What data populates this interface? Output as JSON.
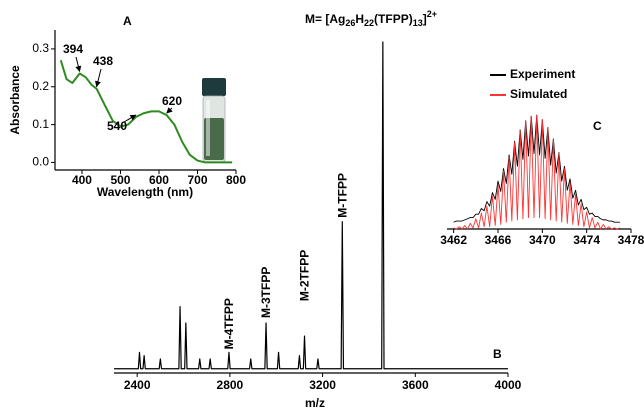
{
  "chart_data": [
    {
      "type": "line",
      "title_parts": [
        "M= [Ag",
        "26",
        "H",
        "22",
        "(TFPP)",
        "13",
        "]",
        "2+"
      ],
      "panel": "B",
      "xlabel": "m/z",
      "x": [
        2300,
        2405,
        2410,
        2415,
        2425,
        2430,
        2435,
        2495,
        2500,
        2505,
        2580,
        2585,
        2590,
        2605,
        2610,
        2615,
        2665,
        2670,
        2675,
        2710,
        2715,
        2720,
        2791,
        2796,
        2801,
        2885,
        2890,
        2895,
        2951,
        2956,
        2961,
        3005,
        3010,
        3015,
        3095,
        3100,
        3105,
        3117,
        3122,
        3127,
        3175,
        3180,
        3185,
        3280,
        3285,
        3290,
        3455,
        3460,
        3465,
        4000
      ],
      "values": [
        0,
        0,
        5,
        0,
        0,
        4,
        0,
        0,
        3,
        0,
        0,
        19,
        0,
        0,
        14,
        0,
        0,
        3,
        0,
        0,
        3,
        0,
        0,
        5,
        0,
        0,
        3,
        0,
        0,
        14,
        0,
        0,
        5,
        0,
        0,
        4,
        0,
        0,
        10,
        0,
        0,
        3,
        0,
        0,
        45,
        0,
        0,
        100,
        0,
        0
      ],
      "color": "#000000",
      "annotations": [
        "M-TFPP",
        "M-2TFPP",
        "M-3TFPP",
        "M-4TFPP"
      ],
      "xlim": [
        2300,
        4000
      ],
      "xticks": [
        2400,
        2800,
        3200,
        3600,
        4000
      ],
      "ylim": [
        -1,
        100
      ]
    },
    {
      "type": "line",
      "panel": "A",
      "xlabel": "Wavelength (nm)",
      "ylabel": "Absorbance",
      "x": [
        345,
        360,
        375,
        394,
        410,
        425,
        438,
        460,
        480,
        500,
        520,
        540,
        560,
        580,
        600,
        620,
        640,
        660,
        680,
        700,
        720,
        760,
        790
      ],
      "values": [
        0.27,
        0.22,
        0.21,
        0.235,
        0.225,
        0.205,
        0.195,
        0.15,
        0.11,
        0.095,
        0.1,
        0.12,
        0.13,
        0.135,
        0.135,
        0.125,
        0.1,
        0.055,
        0.02,
        0.005,
        0,
        0,
        0
      ],
      "color": "#2e8b1f",
      "annotations": [
        394,
        438,
        540,
        620
      ],
      "xlim": [
        330,
        800
      ],
      "xticks": [
        400,
        500,
        600,
        700,
        800
      ],
      "ylim": [
        -0.02,
        0.35
      ],
      "yticks": [
        {
          "value": 0,
          "label": "0.0"
        },
        0.1,
        0.2,
        0.3
      ]
    },
    {
      "type": "line",
      "panel": "C",
      "x": [
        3462,
        3462.25,
        3462.5,
        3462.75,
        3463,
        3463.25,
        3463.5,
        3463.75,
        3464,
        3464.25,
        3464.5,
        3464.75,
        3465,
        3465.25,
        3465.5,
        3465.75,
        3466,
        3466.25,
        3466.5,
        3466.75,
        3467,
        3467.25,
        3467.5,
        3467.75,
        3468,
        3468.25,
        3468.5,
        3468.75,
        3469,
        3469.25,
        3469.5,
        3469.75,
        3470,
        3470.25,
        3470.5,
        3470.75,
        3471,
        3471.25,
        3471.5,
        3471.75,
        3472,
        3472.25,
        3472.5,
        3472.75,
        3473,
        3473.25,
        3473.5,
        3473.75,
        3474,
        3474.25,
        3474.5,
        3474.75,
        3475,
        3475.25,
        3475.5,
        3475.75,
        3476,
        3476.25,
        3476.5,
        3476.75,
        3477
      ],
      "series": [
        {
          "name": "Experiment",
          "color": "#000000",
          "values": [
            6,
            7,
            7,
            7,
            8,
            9,
            10,
            10,
            13,
            13,
            18,
            16,
            24,
            20,
            32,
            26,
            42,
            33,
            53,
            40,
            65,
            48,
            77,
            55,
            87,
            61,
            95,
            64,
            99,
            66,
            100,
            65,
            96,
            62,
            89,
            56,
            79,
            49,
            67,
            42,
            55,
            34,
            44,
            27,
            34,
            21,
            26,
            17,
            19,
            13,
            14,
            11,
            11,
            9,
            8,
            8,
            7,
            7,
            6,
            6,
            6
          ]
        },
        {
          "name": "Simulated",
          "color": "#ff3333",
          "values": [
            1,
            0,
            2,
            0,
            3,
            0,
            5,
            1,
            9,
            1,
            14,
            2,
            20,
            2,
            29,
            3,
            39,
            4,
            51,
            6,
            63,
            7,
            76,
            8,
            86,
            9,
            95,
            10,
            99,
            10,
            100,
            10,
            96,
            9,
            88,
            8,
            78,
            7,
            66,
            6,
            53,
            5,
            41,
            4,
            31,
            3,
            22,
            2,
            15,
            1,
            10,
            1,
            6,
            0,
            4,
            0,
            2,
            0,
            1,
            0,
            1
          ]
        }
      ],
      "legend": "upper left",
      "xlim": [
        3461.4,
        3478
      ],
      "xticks": [
        3462,
        3466,
        3470,
        3474,
        3478
      ],
      "ylim": [
        0,
        100
      ]
    }
  ]
}
